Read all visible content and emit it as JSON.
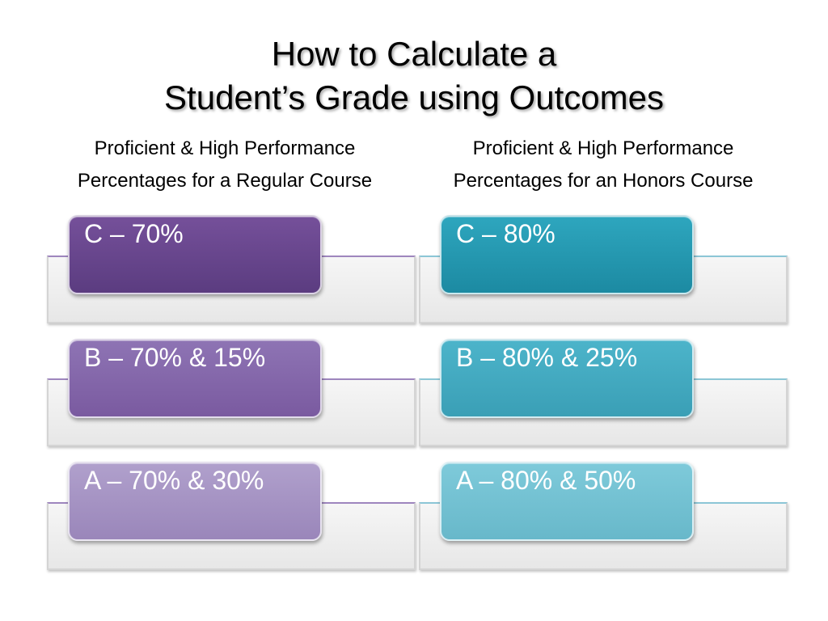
{
  "slide": {
    "title_line1": "How to Calculate a",
    "title_line2": "Student’s Grade using Outcomes"
  },
  "columns": [
    {
      "heading_line1": "Proficient & High Performance",
      "heading_line2": "Percentages for a Regular Course",
      "accent": "#5b3c80",
      "grades": [
        {
          "label": "C – 70%"
        },
        {
          "label": "B – 70% & 15%"
        },
        {
          "label": "A – 70% & 30%"
        }
      ]
    },
    {
      "heading_line1": "Proficient & High Performance",
      "heading_line2": "Percentages for an Honors Course",
      "accent": "#1c8aa2",
      "grades": [
        {
          "label": "C – 80%"
        },
        {
          "label": "B – 80% & 25%"
        },
        {
          "label": "A – 80% & 50%"
        }
      ]
    }
  ]
}
